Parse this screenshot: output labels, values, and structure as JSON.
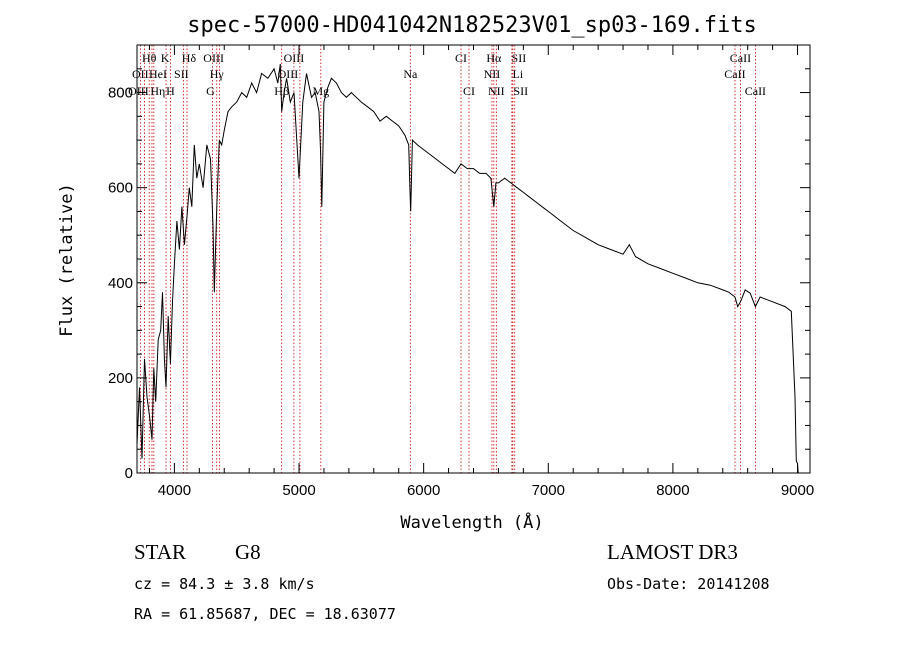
{
  "chart_data": {
    "type": "line",
    "title": "spec-57000-HD041042N182523V01_sp03-169.fits",
    "xlabel": "Wavelength (Å)",
    "ylabel": "Flux (relative)",
    "xlim": [
      3700,
      9100
    ],
    "ylim": [
      0,
      900
    ],
    "xticks": [
      4000,
      5000,
      6000,
      7000,
      8000,
      9000
    ],
    "yticks": [
      0,
      200,
      400,
      600,
      800
    ],
    "series": [
      {
        "name": "spectrum",
        "x": [
          3700,
          3720,
          3740,
          3760,
          3780,
          3800,
          3820,
          3835,
          3850,
          3870,
          3890,
          3905,
          3920,
          3933,
          3950,
          3968,
          3985,
          4000,
          4020,
          4040,
          4060,
          4080,
          4101,
          4120,
          4140,
          4160,
          4180,
          4200,
          4230,
          4260,
          4290,
          4310,
          4320,
          4340,
          4360,
          4380,
          4400,
          4430,
          4460,
          4500,
          4540,
          4580,
          4620,
          4660,
          4700,
          4750,
          4800,
          4830,
          4850,
          4861,
          4880,
          4900,
          4930,
          4960,
          5000,
          5030,
          5060,
          5100,
          5130,
          5160,
          5172,
          5183,
          5200,
          5230,
          5260,
          5300,
          5340,
          5380,
          5420,
          5460,
          5500,
          5550,
          5600,
          5650,
          5700,
          5750,
          5800,
          5850,
          5880,
          5890,
          5896,
          5910,
          5950,
          6000,
          6050,
          6100,
          6150,
          6200,
          6250,
          6300,
          6350,
          6400,
          6450,
          6500,
          6540,
          6563,
          6580,
          6600,
          6650,
          6700,
          6750,
          6800,
          6850,
          6900,
          6950,
          7000,
          7100,
          7200,
          7300,
          7400,
          7500,
          7600,
          7650,
          7700,
          7800,
          7900,
          8000,
          8100,
          8200,
          8300,
          8400,
          8450,
          8498,
          8520,
          8542,
          8580,
          8620,
          8662,
          8700,
          8800,
          8900,
          8950,
          8980,
          8990,
          9000,
          9005
        ],
        "y": [
          60,
          180,
          30,
          240,
          160,
          120,
          70,
          220,
          150,
          280,
          300,
          380,
          240,
          180,
          330,
          230,
          360,
          440,
          530,
          470,
          560,
          480,
          540,
          600,
          560,
          690,
          620,
          650,
          600,
          690,
          660,
          520,
          380,
          560,
          700,
          690,
          720,
          760,
          770,
          780,
          800,
          790,
          820,
          800,
          840,
          830,
          850,
          820,
          860,
          760,
          800,
          830,
          780,
          800,
          620,
          780,
          840,
          790,
          800,
          760,
          680,
          560,
          780,
          810,
          830,
          820,
          800,
          790,
          800,
          790,
          780,
          770,
          760,
          740,
          750,
          740,
          730,
          710,
          690,
          600,
          550,
          700,
          690,
          680,
          670,
          660,
          650,
          640,
          630,
          650,
          640,
          640,
          630,
          630,
          620,
          560,
          610,
          610,
          620,
          610,
          600,
          590,
          580,
          570,
          560,
          550,
          530,
          510,
          495,
          480,
          470,
          460,
          480,
          455,
          440,
          430,
          420,
          410,
          400,
          395,
          385,
          380,
          370,
          350,
          360,
          385,
          378,
          350,
          370,
          360,
          350,
          340,
          160,
          25,
          20,
          0
        ]
      }
    ],
    "lines": [
      {
        "label": "Hθ",
        "wave": 3798,
        "row": 1,
        "dx": 0
      },
      {
        "label": "OII",
        "wave": 3727,
        "row": 2,
        "dx": 0
      },
      {
        "label": "OIII",
        "wave": 3760,
        "row": 3,
        "dx": -6
      },
      {
        "label": "Hη",
        "wave": 3835,
        "row": 3,
        "dx": 4
      },
      {
        "label": "HeI",
        "wave": 3820,
        "row": 2,
        "dx": 6
      },
      {
        "label": "K",
        "wave": 3933,
        "row": 1,
        "dx": -1
      },
      {
        "label": "H",
        "wave": 3968,
        "row": 3,
        "dx": 0
      },
      {
        "label": "SII",
        "wave": 4072,
        "row": 2,
        "dx": -2
      },
      {
        "label": "Hδ",
        "wave": 4101,
        "row": 1,
        "dx": 2
      },
      {
        "label": "OIII",
        "wave": 4363,
        "row": 1,
        "dx": -6
      },
      {
        "label": "Hγ",
        "wave": 4340,
        "row": 2,
        "dx": 0
      },
      {
        "label": "G",
        "wave": 4305,
        "row": 3,
        "dx": -2
      },
      {
        "label": "OIII",
        "wave": 5007,
        "row": 1,
        "dx": -6
      },
      {
        "label": "OIII",
        "wave": 4959,
        "row": 2,
        "dx": -6
      },
      {
        "label": "Hβ",
        "wave": 4861,
        "row": 3,
        "dx": 0
      },
      {
        "label": "Mg",
        "wave": 5175,
        "row": 3,
        "dx": 0
      },
      {
        "label": "Na",
        "wave": 5893,
        "row": 2,
        "dx": 0
      },
      {
        "label": "CI",
        "wave": 6300,
        "row": 1,
        "dx": 0
      },
      {
        "label": "CI",
        "wave": 6364,
        "row": 3,
        "dx": 0
      },
      {
        "label": "Hα",
        "wave": 6563,
        "row": 1,
        "dx": 0
      },
      {
        "label": "NII",
        "wave": 6548,
        "row": 2,
        "dx": 0
      },
      {
        "label": "NII",
        "wave": 6583,
        "row": 3,
        "dx": 0
      },
      {
        "label": "SII",
        "wave": 6716,
        "row": 1,
        "dx": 6
      },
      {
        "label": "Li",
        "wave": 6708,
        "row": 2,
        "dx": 6
      },
      {
        "label": "SII",
        "wave": 6731,
        "row": 3,
        "dx": 6
      },
      {
        "label": "CaII",
        "wave": 8542,
        "row": 1,
        "dx": 0
      },
      {
        "label": "CaII",
        "wave": 8498,
        "row": 2,
        "dx": 0
      },
      {
        "label": "CaII",
        "wave": 8662,
        "row": 3,
        "dx": 0
      }
    ],
    "grid": false,
    "legend": "none"
  },
  "info": {
    "class": "STAR",
    "subclass": "G8",
    "survey": "LAMOST DR3",
    "cz": "cz = 84.3 ± 3.8 km/s",
    "obsdate": "Obs-Date: 20141208",
    "coords": "RA =  61.85687, DEC =  18.63077"
  },
  "colors": {
    "spectrum": "#000000",
    "line_marker": "#cc0000",
    "axes": "#000000"
  }
}
